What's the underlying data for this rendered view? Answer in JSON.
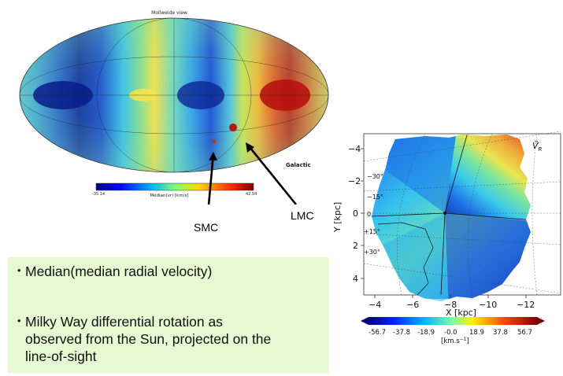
{
  "mollweide": {
    "title": "Mollweide view",
    "frame_label": "Galactic",
    "colorbar": {
      "min": "-35.14",
      "max": "42.54",
      "label": "Median(vr) [km/s]"
    }
  },
  "annotations": {
    "smc": "SMC",
    "lmc": "LMC"
  },
  "bullets": [
    {
      "text": "Median(median radial velocity)"
    },
    {
      "text_lines": [
        "Milky Way differential rotation as",
        "observed from the Sun, projected on the",
        "line-of-sight"
      ]
    }
  ],
  "xy_map": {
    "symbol": "Ṽ",
    "symbol_sub": "R",
    "x_label": "X [kpc]",
    "y_label": "Y [kpc]",
    "x_ticks": [
      "−4",
      "−6",
      "−8",
      "−10",
      "−12"
    ],
    "y_ticks": [
      "−4",
      "−2",
      "0",
      "2",
      "4"
    ],
    "angle_labels": [
      "−30°",
      "−15°",
      "0",
      "+15°",
      "+30°"
    ],
    "colorbar": {
      "ticks": [
        "-56.7",
        "-37.8",
        "-18.9",
        "-0.0",
        "18.9",
        "37.8",
        "56.7"
      ],
      "unit": "[km.s",
      "unit_sup": "−1",
      "unit_close": "]"
    }
  },
  "colors": {
    "text_box_bg": "#e6f9d3"
  }
}
